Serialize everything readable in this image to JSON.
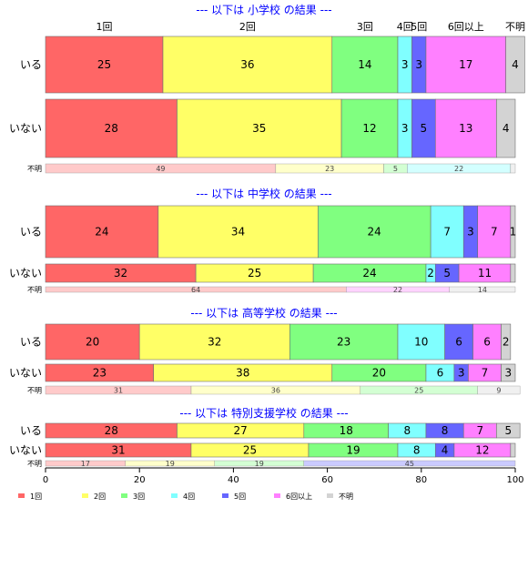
{
  "chart_data": {
    "type": "bar",
    "orientation": "horizontal",
    "stacked": true,
    "xlim": [
      0,
      100
    ],
    "x_ticks": [
      "0",
      "20",
      "40",
      "60",
      "80",
      "100"
    ],
    "categories": [
      "1回",
      "2回",
      "3回",
      "4回",
      "5回",
      "6回以上",
      "不明"
    ],
    "category_colors": [
      "#ff6666",
      "#ffff66",
      "#80ff80",
      "#80ffff",
      "#6666ff",
      "#ff80ff",
      "#d3d3d3"
    ],
    "legend_labels": [
      "1回",
      "2回",
      "3回",
      "4回",
      "5回",
      "6回以上",
      "不明"
    ],
    "legend_position": "bottom",
    "groups": [
      {
        "title": "--- 以下は 小学校 の結果 ---",
        "show_category_labels": true,
        "rows": [
          {
            "label": "いる",
            "values": [
              25,
              36,
              14,
              3,
              3,
              17,
              4
            ]
          },
          {
            "label": "いない",
            "values": [
              28,
              35,
              12,
              3,
              5,
              13,
              4
            ]
          },
          {
            "label": "不明",
            "values": [
              49,
              23,
              5,
              22,
              0,
              0,
              1
            ],
            "value_labels": [
              "49",
              "23",
              "5",
              "22",
              "",
              "",
              ""
            ]
          }
        ]
      },
      {
        "title": "--- 以下は 中学校 の結果 ---",
        "rows": [
          {
            "label": "いる",
            "values": [
              24,
              34,
              24,
              7,
              3,
              7,
              1
            ]
          },
          {
            "label": "いない",
            "values": [
              32,
              25,
              24,
              2,
              5,
              11,
              1
            ],
            "value_labels": [
              "32",
              "25",
              "24",
              "2",
              "5",
              "11",
              ""
            ]
          },
          {
            "label": "不明",
            "values": [
              64,
              0,
              0,
              0,
              0,
              22,
              14
            ],
            "value_labels": [
              "64",
              "",
              "",
              "",
              "",
              "22",
              "14"
            ]
          }
        ]
      },
      {
        "title": "--- 以下は 高等学校 の結果 ---",
        "rows": [
          {
            "label": "いる",
            "values": [
              20,
              32,
              23,
              10,
              6,
              6,
              2
            ]
          },
          {
            "label": "いない",
            "values": [
              23,
              38,
              20,
              6,
              3,
              7,
              3
            ]
          },
          {
            "label": "不明",
            "values": [
              31,
              36,
              25,
              0,
              0,
              0,
              9
            ],
            "value_labels": [
              "31",
              "36",
              "25",
              "",
              "",
              "",
              "9"
            ]
          }
        ]
      },
      {
        "title": "--- 以下は 特別支援学校 の結果 ---",
        "rows": [
          {
            "label": "いる",
            "values": [
              28,
              27,
              18,
              8,
              8,
              7,
              5
            ]
          },
          {
            "label": "いない",
            "values": [
              31,
              25,
              19,
              8,
              4,
              12,
              1
            ],
            "value_labels": [
              "31",
              "25",
              "19",
              "8",
              "4",
              "12",
              ""
            ]
          },
          {
            "label": "不明",
            "values": [
              17,
              19,
              19,
              0,
              45,
              0,
              0
            ],
            "value_labels": [
              "17",
              "19",
              "19",
              "",
              "45",
              "",
              ""
            ]
          }
        ]
      }
    ]
  }
}
